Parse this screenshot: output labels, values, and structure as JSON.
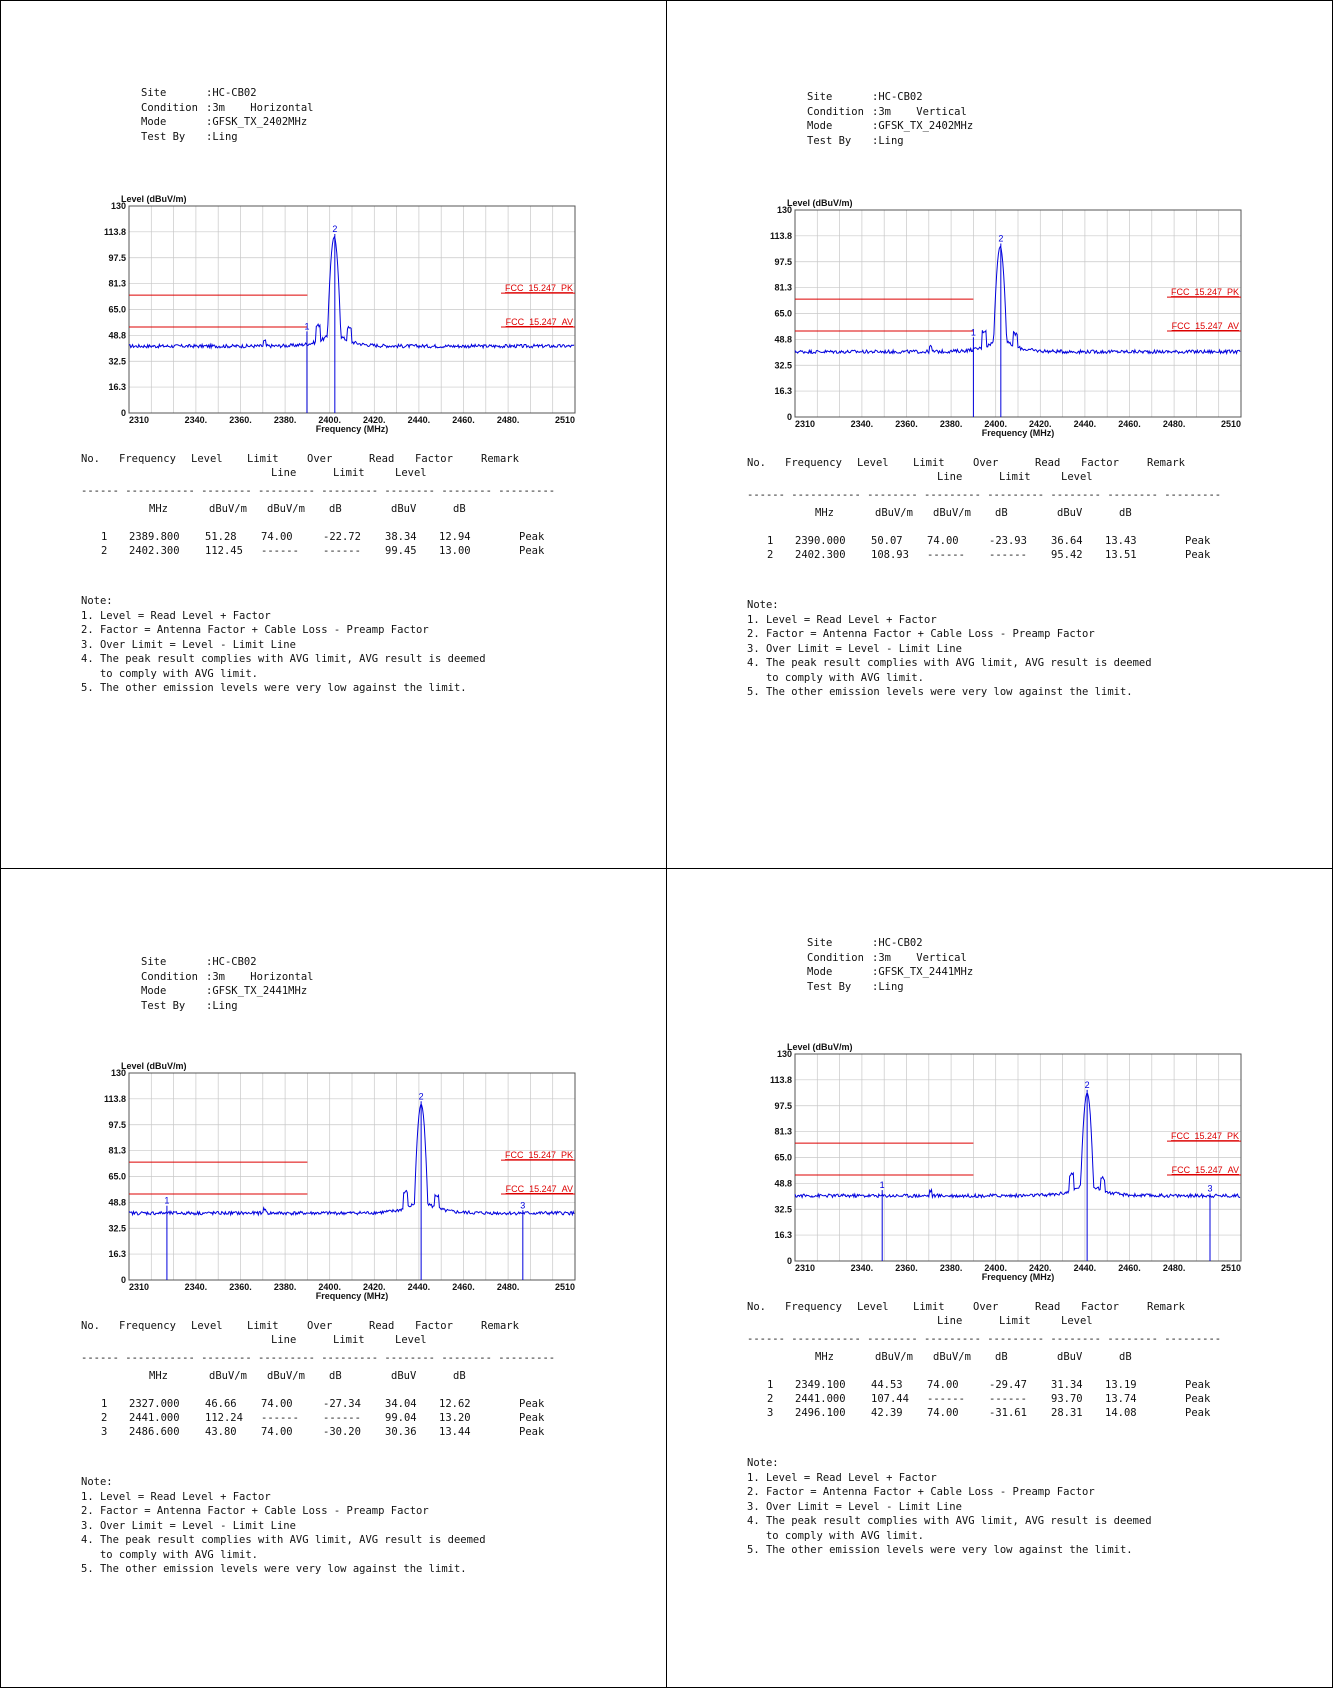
{
  "panels": [
    {
      "site": ":HC-CB02",
      "condition": ":3m    Horizontal",
      "mode": ":GFSK_TX_2402MHz",
      "test_by": ":Ling",
      "rows": [
        {
          "no": "1",
          "freq": "2389.800",
          "level": "51.28",
          "limit": "74.00",
          "over": "-22.72",
          "read": "38.34",
          "factor": "12.94",
          "remark": "Peak"
        },
        {
          "no": "2",
          "freq": "2402.300",
          "level": "112.45",
          "limit": "------",
          "over": "------",
          "read": "99.45",
          "factor": "13.00",
          "remark": "Peak"
        }
      ]
    },
    {
      "site": ":HC-CB02",
      "condition": ":3m    Vertical",
      "mode": ":GFSK_TX_2402MHz",
      "test_by": ":Ling",
      "rows": [
        {
          "no": "1",
          "freq": "2390.000",
          "level": "50.07",
          "limit": "74.00",
          "over": "-23.93",
          "read": "36.64",
          "factor": "13.43",
          "remark": "Peak"
        },
        {
          "no": "2",
          "freq": "2402.300",
          "level": "108.93",
          "limit": "------",
          "over": "------",
          "read": "95.42",
          "factor": "13.51",
          "remark": "Peak"
        }
      ]
    },
    {
      "site": ":HC-CB02",
      "condition": ":3m    Horizontal",
      "mode": ":GFSK_TX_2441MHz",
      "test_by": ":Ling",
      "rows": [
        {
          "no": "1",
          "freq": "2327.000",
          "level": "46.66",
          "limit": "74.00",
          "over": "-27.34",
          "read": "34.04",
          "factor": "12.62",
          "remark": "Peak"
        },
        {
          "no": "2",
          "freq": "2441.000",
          "level": "112.24",
          "limit": "------",
          "over": "------",
          "read": "99.04",
          "factor": "13.20",
          "remark": "Peak"
        },
        {
          "no": "3",
          "freq": "2486.600",
          "level": "43.80",
          "limit": "74.00",
          "over": "-30.20",
          "read": "30.36",
          "factor": "13.44",
          "remark": "Peak"
        }
      ]
    },
    {
      "site": ":HC-CB02",
      "condition": ":3m    Vertical",
      "mode": ":GFSK_TX_2441MHz",
      "test_by": ":Ling",
      "rows": [
        {
          "no": "1",
          "freq": "2349.100",
          "level": "44.53",
          "limit": "74.00",
          "over": "-29.47",
          "read": "31.34",
          "factor": "13.19",
          "remark": "Peak"
        },
        {
          "no": "2",
          "freq": "2441.000",
          "level": "107.44",
          "limit": "------",
          "over": "------",
          "read": "93.70",
          "factor": "13.74",
          "remark": "Peak"
        },
        {
          "no": "3",
          "freq": "2496.100",
          "level": "42.39",
          "limit": "74.00",
          "over": "-31.61",
          "read": "28.31",
          "factor": "14.08",
          "remark": "Peak"
        }
      ]
    }
  ],
  "labels": {
    "site": "Site",
    "condition": "Condition",
    "mode": "Mode",
    "test_by": "Test By",
    "table_head_1": [
      "No.",
      "Frequency",
      "Level",
      "Limit",
      "Over",
      "Read",
      "Factor",
      "Remark"
    ],
    "table_head_2": [
      "",
      "",
      "",
      "Line",
      "Limit",
      "Level",
      "",
      ""
    ],
    "units": [
      "",
      "MHz",
      "dBuV/m",
      "dBuV/m",
      "dB",
      "dBuV",
      "dB",
      ""
    ],
    "separator": "------ ----------- -------- --------- --------- -------- -------- ---------",
    "note_title": "Note:",
    "notes": [
      "1. Level = Read Level + Factor",
      "2. Factor = Antenna Factor + Cable Loss - Preamp Factor",
      "3. Over Limit = Level - Limit Line",
      "4. The peak result complies with AVG limit, AVG result is deemed",
      "   to comply with AVG limit.",
      "5. The other emission levels were very low against the limit."
    ]
  },
  "chart_data": [
    {
      "type": "line",
      "ylabel": "Level (dBuV/m)",
      "xlabel": "Frequency (MHz)",
      "xlim": [
        2310,
        2510
      ],
      "ylim": [
        0,
        130
      ],
      "yticks": [
        "0",
        "16.3",
        "32.5",
        "48.8",
        "65.0",
        "81.3",
        "97.5",
        "113.8",
        "130"
      ],
      "xticks": [
        "2310",
        "2340.",
        "2360.",
        "2380.",
        "2400.",
        "2420.",
        "2440.",
        "2460.",
        "2480.",
        "2510"
      ],
      "limit_lines": [
        {
          "name": "FCC_15.247_PK",
          "value": 74
        },
        {
          "name": "FCC_15.247_AV",
          "value": 54
        }
      ],
      "noise_floor": 42,
      "carrier": 2402,
      "carrier_peak": 112.45,
      "markers": [
        {
          "label": "1",
          "x": 2389.8,
          "y": 51.28
        },
        {
          "label": "2",
          "x": 2402.3,
          "y": 112.45
        }
      ],
      "color": "#0000dd",
      "limit_color": "#dd0000"
    },
    {
      "type": "line",
      "ylabel": "Level (dBuV/m)",
      "xlabel": "Frequency (MHz)",
      "xlim": [
        2310,
        2510
      ],
      "ylim": [
        0,
        130
      ],
      "yticks": [
        "0",
        "16.3",
        "32.5",
        "48.8",
        "65.0",
        "81.3",
        "97.5",
        "113.8",
        "130"
      ],
      "xticks": [
        "2310",
        "2340.",
        "2360.",
        "2380.",
        "2400.",
        "2420.",
        "2440.",
        "2460.",
        "2480.",
        "2510"
      ],
      "limit_lines": [
        {
          "name": "FCC_15.247_PK",
          "value": 74
        },
        {
          "name": "FCC_15.247_AV",
          "value": 54
        }
      ],
      "noise_floor": 41,
      "carrier": 2402,
      "carrier_peak": 108.93,
      "markers": [
        {
          "label": "1",
          "x": 2390.0,
          "y": 50.07
        },
        {
          "label": "2",
          "x": 2402.3,
          "y": 108.93
        }
      ],
      "color": "#0000dd",
      "limit_color": "#dd0000"
    },
    {
      "type": "line",
      "ylabel": "Level (dBuV/m)",
      "xlabel": "Frequency (MHz)",
      "xlim": [
        2310,
        2510
      ],
      "ylim": [
        0,
        130
      ],
      "yticks": [
        "0",
        "16.3",
        "32.5",
        "48.8",
        "65.0",
        "81.3",
        "97.5",
        "113.8",
        "130"
      ],
      "xticks": [
        "2310",
        "2340.",
        "2360.",
        "2380.",
        "2400.",
        "2420.",
        "2440.",
        "2460.",
        "2480.",
        "2510"
      ],
      "limit_lines": [
        {
          "name": "FCC_15.247_PK",
          "value": 74
        },
        {
          "name": "FCC_15.247_AV",
          "value": 54
        }
      ],
      "noise_floor": 42,
      "carrier": 2441,
      "carrier_peak": 112.24,
      "markers": [
        {
          "label": "1",
          "x": 2327.0,
          "y": 46.66
        },
        {
          "label": "2",
          "x": 2441.0,
          "y": 112.24
        },
        {
          "label": "3",
          "x": 2486.6,
          "y": 43.8
        }
      ],
      "color": "#0000dd",
      "limit_color": "#dd0000"
    },
    {
      "type": "line",
      "ylabel": "Level (dBuV/m)",
      "xlabel": "Frequency (MHz)",
      "xlim": [
        2310,
        2510
      ],
      "ylim": [
        0,
        130
      ],
      "yticks": [
        "0",
        "16.3",
        "32.5",
        "48.8",
        "65.0",
        "81.3",
        "97.5",
        "113.8",
        "130"
      ],
      "xticks": [
        "2310",
        "2340.",
        "2360.",
        "2380.",
        "2400.",
        "2420.",
        "2440.",
        "2460.",
        "2480.",
        "2510"
      ],
      "limit_lines": [
        {
          "name": "FCC_15.247_PK",
          "value": 74
        },
        {
          "name": "FCC_15.247_AV",
          "value": 54
        }
      ],
      "noise_floor": 41,
      "carrier": 2441,
      "carrier_peak": 107.44,
      "markers": [
        {
          "label": "1",
          "x": 2349.1,
          "y": 44.53
        },
        {
          "label": "2",
          "x": 2441.0,
          "y": 107.44
        },
        {
          "label": "3",
          "x": 2496.1,
          "y": 42.39
        }
      ],
      "color": "#0000dd",
      "limit_color": "#dd0000"
    }
  ]
}
